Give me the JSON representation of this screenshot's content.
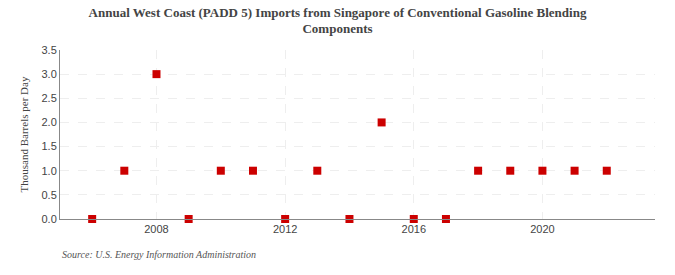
{
  "chart_data": {
    "type": "scatter",
    "title": "Annual West Coast (PADD 5) Imports from Singapore of Conventional Gasoline Blending\nComponents",
    "y_label": "Thousand Barrels per Day",
    "annotations": [
      "Source: U.S. Energy Information Administration"
    ],
    "x": [
      2006,
      2007,
      2008,
      2009,
      2010,
      2011,
      2012,
      2013,
      2014,
      2015,
      2016,
      2017,
      2018,
      2019,
      2020,
      2021,
      2022
    ],
    "values": [
      0.0,
      1.0,
      3.0,
      0.0,
      1.0,
      1.0,
      0.0,
      1.0,
      0.0,
      2.0,
      0.0,
      0.0,
      1.0,
      1.0,
      1.0,
      1.0,
      1.0
    ],
    "color": "#cc0000",
    "marker": "square",
    "xlim": [
      2005.0,
      2023.5
    ],
    "xticks": [
      2008,
      2012,
      2016,
      2020
    ],
    "ylim": [
      0.0,
      3.5
    ],
    "yticks": [
      {
        "value": 0.0,
        "label": "0.0"
      },
      0.5,
      {
        "value": 1.0,
        "label": "1.0"
      },
      1.5,
      {
        "value": 2.0,
        "label": "2.0"
      },
      2.5,
      {
        "value": 3.0,
        "label": "3.0"
      },
      3.5
    ],
    "grid": true
  }
}
